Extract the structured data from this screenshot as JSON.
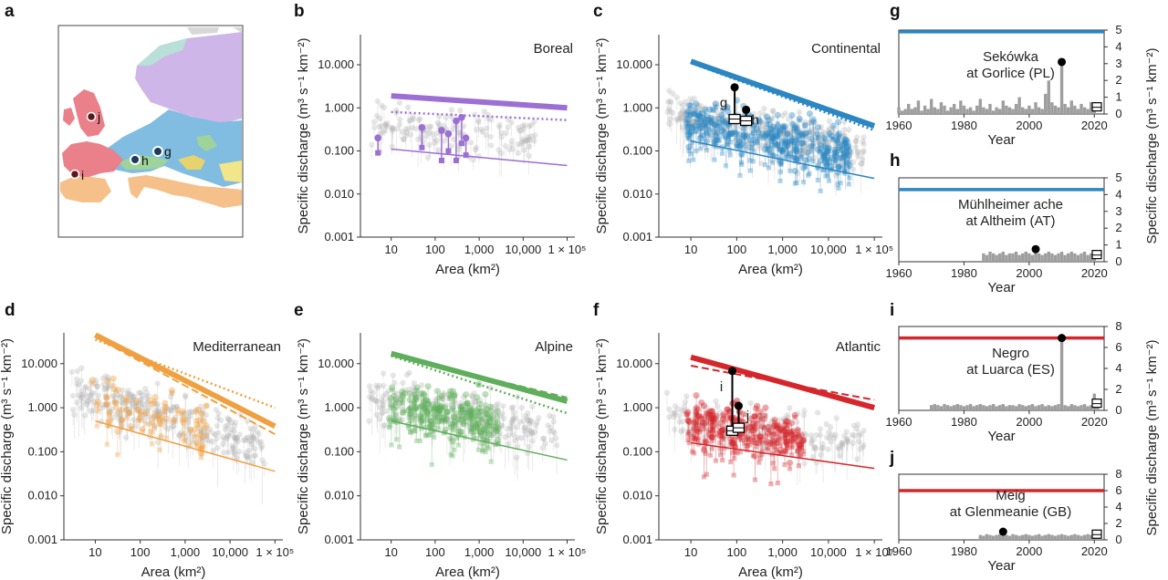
{
  "panel_letters": [
    "a",
    "b",
    "c",
    "d",
    "e",
    "f",
    "g",
    "h",
    "i",
    "j"
  ],
  "map": {
    "site_labels": [
      "j",
      "i",
      "h",
      "g"
    ]
  },
  "colors": {
    "boreal": "#9b6fd3",
    "continental": "#2b86c2",
    "mediterranean": "#f0a040",
    "alpine": "#5fae5b",
    "atlantic": "#d4262b",
    "gray": "#aaaaaa"
  },
  "scatter_axes": {
    "xlabel": "Area (km²)",
    "ylabel": "Specific discharge (m³ s⁻¹ km⁻²)",
    "x_ticks": [
      "10",
      "100",
      "1,000",
      "10,000",
      "1 × 10⁵"
    ],
    "y_ticks": [
      "0.001",
      "0.010",
      "0.100",
      "1.000",
      "10.000"
    ]
  },
  "bar_axes": {
    "xlabel": "Year",
    "ylabel": "Specific discharge (m³ s⁻¹ km⁻²)",
    "x_ticks": [
      "1960",
      "1980",
      "2000",
      "2020"
    ]
  },
  "chart_data": [
    {
      "panel": "b",
      "type": "scatter",
      "title": "Boreal",
      "xscale": "log",
      "yscale": "log",
      "xlim": [
        2,
        150000
      ],
      "ylim": [
        0.001,
        50
      ],
      "lines": [
        {
          "style": "thick",
          "x": [
            10,
            100000
          ],
          "y": [
            1.9,
            1.0
          ]
        },
        {
          "style": "dotted",
          "x": [
            10,
            100000
          ],
          "y": [
            0.8,
            0.52
          ]
        },
        {
          "style": "thin",
          "x": [
            10,
            100000
          ],
          "y": [
            0.11,
            0.046
          ]
        }
      ],
      "highlighted_points": [
        {
          "area": 5,
          "q_high": 0.2,
          "q_low": 0.09
        },
        {
          "area": 50,
          "q_high": 0.35,
          "q_low": 0.12
        },
        {
          "area": 140,
          "q_high": 0.3,
          "q_low": 0.06
        },
        {
          "area": 200,
          "q_high": 0.25,
          "q_low": 0.1
        },
        {
          "area": 300,
          "q_high": 0.5,
          "q_low": 0.06
        },
        {
          "area": 400,
          "q_high": 0.6,
          "q_low": 0.15
        },
        {
          "area": 500,
          "q_high": 0.2,
          "q_low": 0.08
        }
      ]
    },
    {
      "panel": "c",
      "type": "scatter",
      "title": "Continental",
      "xscale": "log",
      "yscale": "log",
      "xlim": [
        2,
        150000
      ],
      "ylim": [
        0.001,
        50
      ],
      "lines": [
        {
          "style": "thick",
          "x": [
            10,
            100000
          ],
          "y": [
            12,
            0.38
          ]
        },
        {
          "style": "dotted",
          "x": [
            10,
            100000
          ],
          "y": [
            11,
            0.3
          ]
        },
        {
          "style": "thin",
          "x": [
            10,
            100000
          ],
          "y": [
            0.17,
            0.023
          ]
        }
      ],
      "site_labels": [
        "g",
        "h"
      ],
      "sites": [
        {
          "label": "g",
          "area": 90,
          "q_high": 3.0,
          "q_low": 0.55
        },
        {
          "label": "h",
          "area": 160,
          "q_high": 0.9,
          "q_low": 0.5
        }
      ]
    },
    {
      "panel": "d",
      "type": "scatter",
      "title": "Mediterranean",
      "xscale": "log",
      "yscale": "log",
      "xlim": [
        2,
        150000
      ],
      "ylim": [
        0.001,
        50
      ],
      "lines": [
        {
          "style": "thick",
          "x": [
            10,
            100000
          ],
          "y": [
            45,
            0.38
          ]
        },
        {
          "style": "dashed",
          "x": [
            10,
            100000
          ],
          "y": [
            40,
            0.25
          ]
        },
        {
          "style": "dotted",
          "x": [
            10,
            100000
          ],
          "y": [
            35,
            1.0
          ]
        },
        {
          "style": "thin",
          "x": [
            10,
            100000
          ],
          "y": [
            0.5,
            0.036
          ]
        }
      ]
    },
    {
      "panel": "e",
      "type": "scatter",
      "title": "Alpine",
      "xscale": "log",
      "yscale": "log",
      "xlim": [
        2,
        150000
      ],
      "ylim": [
        0.001,
        50
      ],
      "lines": [
        {
          "style": "thick",
          "x": [
            10,
            100000
          ],
          "y": [
            17,
            1.4
          ]
        },
        {
          "style": "dashed",
          "x": [
            10,
            100000
          ],
          "y": [
            16,
            1.7
          ]
        },
        {
          "style": "dotted",
          "x": [
            10,
            100000
          ],
          "y": [
            15,
            0.75
          ]
        },
        {
          "style": "thin",
          "x": [
            10,
            100000
          ],
          "y": [
            0.5,
            0.065
          ]
        }
      ]
    },
    {
      "panel": "f",
      "type": "scatter",
      "title": "Atlantic",
      "xscale": "log",
      "yscale": "log",
      "xlim": [
        2,
        150000
      ],
      "ylim": [
        0.001,
        50
      ],
      "lines": [
        {
          "style": "thick",
          "x": [
            10,
            100000
          ],
          "y": [
            14,
            1.0
          ]
        },
        {
          "style": "dashed",
          "x": [
            10,
            100000
          ],
          "y": [
            9,
            1.5
          ]
        },
        {
          "style": "thin",
          "x": [
            10,
            100000
          ],
          "y": [
            0.16,
            0.042
          ]
        }
      ],
      "site_labels": [
        "i",
        "j"
      ],
      "sites": [
        {
          "label": "i",
          "area": 80,
          "q_high": 6.8,
          "q_low": 0.3
        },
        {
          "label": "j",
          "area": 110,
          "q_high": 1.1,
          "q_low": 0.35
        }
      ]
    },
    {
      "panel": "g",
      "type": "bar",
      "title": "Sekówka\nat Gorlice (PL)",
      "xlim": [
        1960,
        2023
      ],
      "ylim": [
        0,
        5
      ],
      "y_ticks": [
        "0",
        "1",
        "2",
        "3",
        "4",
        "5"
      ],
      "threshold": 4.9,
      "threshold_color": "#2b86c2",
      "peak": {
        "year": 2010,
        "value": 3.1
      },
      "years_start": 1960,
      "values": [
        0.4,
        0.2,
        0.3,
        0.6,
        0.3,
        0.4,
        0.8,
        0.2,
        0.5,
        0.3,
        0.9,
        0.4,
        0.3,
        0.7,
        0.5,
        0.2,
        0.4,
        0.6,
        0.3,
        0.8,
        0.5,
        0.3,
        0.4,
        0.2,
        0.5,
        0.9,
        0.4,
        0.3,
        0.6,
        0.2,
        0.4,
        0.3,
        0.8,
        0.5,
        0.4,
        0.3,
        0.6,
        1.0,
        0.4,
        0.3,
        0.5,
        0.3,
        0.7,
        0.4,
        0.3,
        1.2,
        2.0,
        0.7,
        0.5,
        0.4,
        3.1,
        0.6,
        0.4,
        0.8,
        0.5,
        0.3,
        0.6,
        0.4,
        0.3,
        0.7,
        0.4
      ]
    },
    {
      "panel": "h",
      "type": "bar",
      "title": "Mühlheimer ache\nat Altheim (AT)",
      "xlim": [
        1960,
        2023
      ],
      "ylim": [
        0,
        5
      ],
      "y_ticks": [
        "0",
        "1",
        "2",
        "3",
        "4",
        "5"
      ],
      "threshold": 4.3,
      "threshold_color": "#2b86c2",
      "peak": {
        "year": 2002,
        "value": 0.75
      },
      "years_start": 1986,
      "values": [
        0.5,
        0.4,
        0.6,
        0.5,
        0.4,
        0.5,
        0.6,
        0.4,
        0.5,
        0.5,
        0.6,
        0.4,
        0.5,
        0.6,
        0.5,
        0.4,
        0.75,
        0.5,
        0.4,
        0.5,
        0.6,
        0.5,
        0.4,
        0.5,
        0.6,
        0.4,
        0.5,
        0.6,
        0.5,
        0.4,
        0.5,
        0.6,
        0.4,
        0.5,
        0.4
      ]
    },
    {
      "panel": "i",
      "type": "bar",
      "title": "Negro\nat Luarca (ES)",
      "xlim": [
        1960,
        2023
      ],
      "ylim": [
        0,
        8
      ],
      "y_ticks": [
        "0",
        "2",
        "4",
        "6",
        "8"
      ],
      "threshold": 6.9,
      "threshold_color": "#d4262b",
      "peak": {
        "year": 2010,
        "value": 6.9
      },
      "years_start": 1970,
      "values": [
        0.5,
        0.6,
        0.5,
        0.4,
        0.6,
        0.5,
        0.4,
        0.5,
        0.6,
        0.5,
        0.4,
        0.5,
        0.6,
        0.4,
        0.5,
        0.6,
        0.5,
        0.4,
        0.5,
        0.6,
        0.4,
        0.5,
        0.6,
        0.4,
        0.5,
        0.5,
        0.4,
        0.6,
        0.5,
        0.4,
        0.5,
        0.6,
        0.4,
        0.5,
        0.6,
        0.4,
        0.5,
        0.4,
        0.5,
        0.6,
        6.9,
        0.5,
        0.4,
        0.6,
        0.5,
        0.4,
        0.5,
        0.6,
        0.4,
        0.5,
        1.6,
        0.6
      ]
    },
    {
      "panel": "j",
      "type": "bar",
      "title": "Meig\nat Glenmeanie (GB)",
      "xlim": [
        1960,
        2023
      ],
      "ylim": [
        0,
        8
      ],
      "y_ticks": [
        "0",
        "2",
        "4",
        "6",
        "8"
      ],
      "threshold": 6.0,
      "threshold_color": "#d4262b",
      "peak": {
        "year": 1992,
        "value": 1.0
      },
      "years_start": 1985,
      "values": [
        0.6,
        0.5,
        0.7,
        0.6,
        0.5,
        0.6,
        0.7,
        1.0,
        0.6,
        0.5,
        0.7,
        0.6,
        0.5,
        0.6,
        0.7,
        0.6,
        0.5,
        0.6,
        0.7,
        0.5,
        0.6,
        0.7,
        0.6,
        0.5,
        0.6,
        0.7,
        0.6,
        0.5,
        0.6,
        0.7,
        0.6,
        0.5,
        0.6,
        0.7,
        0.6,
        0.5,
        0.6,
        0.7
      ]
    }
  ]
}
